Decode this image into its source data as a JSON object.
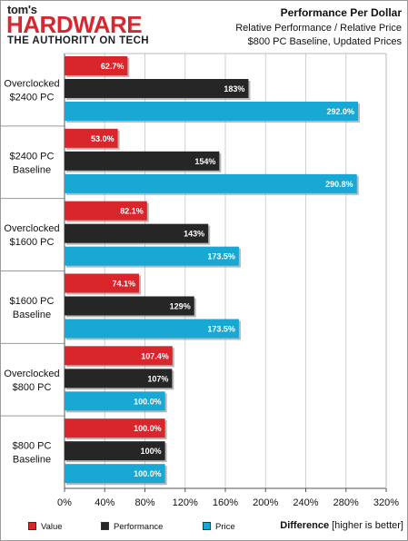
{
  "logo": {
    "toms": "tom's",
    "hardware": "HARDWARE",
    "tagline": "THE AUTHORITY ON TECH"
  },
  "header": {
    "title": "Performance Per Dollar",
    "subtitle1": "Relative Performance / Relative Price",
    "subtitle2": "$800 PC Baseline, Updated Prices"
  },
  "chart_data": {
    "type": "bar",
    "orientation": "horizontal",
    "categories": [
      [
        "Overclocked",
        "$2400 PC"
      ],
      [
        "$2400 PC",
        "Baseline"
      ],
      [
        "Overclocked",
        "$1600 PC"
      ],
      [
        "$1600 PC",
        "Baseline"
      ],
      [
        "Overclocked",
        "$800 PC"
      ],
      [
        "$800 PC",
        "Baseline"
      ]
    ],
    "series": [
      {
        "name": "Value",
        "color": "#d9262b",
        "values": [
          62.7,
          53.0,
          82.1,
          74.1,
          107.4,
          100.0
        ],
        "labels": [
          "62.7%",
          "53.0%",
          "82.1%",
          "74.1%",
          "107.4%",
          "100.0%"
        ]
      },
      {
        "name": "Performance",
        "color": "#262626",
        "values": [
          183,
          154,
          143,
          129,
          107,
          100
        ],
        "labels": [
          "183%",
          "154%",
          "143%",
          "129%",
          "107%",
          "100%"
        ]
      },
      {
        "name": "Price",
        "color": "#19a7d4",
        "values": [
          292.0,
          290.8,
          173.5,
          173.5,
          100.0,
          100.0
        ],
        "labels": [
          "292.0%",
          "290.8%",
          "173.5%",
          "173.5%",
          "100.0%",
          "100.0%"
        ]
      }
    ],
    "xlim": [
      0,
      320
    ],
    "xticks": [
      0,
      40,
      80,
      120,
      160,
      200,
      240,
      280,
      320
    ],
    "xtick_labels": [
      "0%",
      "40%",
      "80%",
      "120%",
      "160%",
      "200%",
      "240%",
      "280%",
      "320%"
    ],
    "grid": true,
    "legend_position": "bottom-left",
    "xlabel_bold": "Difference",
    "xlabel_rest": " [higher is better]"
  }
}
